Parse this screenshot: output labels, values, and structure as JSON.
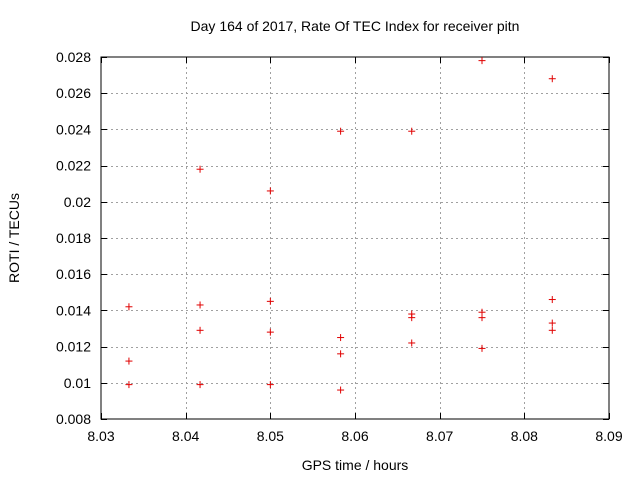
{
  "chart_data": {
    "type": "scatter",
    "title": "Day 164 of 2017, Rate Of TEC Index for receiver pitn",
    "xlabel": "GPS time / hours",
    "ylabel": "ROTI / TECUs",
    "xlim": [
      8.03,
      8.09
    ],
    "ylim": [
      0.008,
      0.028
    ],
    "xticks": [
      8.03,
      8.04,
      8.05,
      8.06,
      8.07,
      8.08,
      8.09
    ],
    "xtick_labels": [
      "8.03",
      "8.04",
      "8.05",
      "8.06",
      "8.07",
      "8.08",
      "8.09"
    ],
    "yticks": [
      0.008,
      0.01,
      0.012,
      0.014,
      0.016,
      0.018,
      0.02,
      0.022,
      0.024,
      0.026,
      0.028
    ],
    "ytick_labels": [
      "0.008",
      "0.01",
      "0.012",
      "0.014",
      "0.016",
      "0.018",
      "0.02",
      "0.022",
      "0.024",
      "0.026",
      "0.028"
    ],
    "grid": true,
    "marker": "+",
    "color": "#e00000",
    "series": [
      {
        "name": "ROTI",
        "points": [
          {
            "x": 8.0333,
            "y": 0.0142
          },
          {
            "x": 8.0333,
            "y": 0.0112
          },
          {
            "x": 8.0333,
            "y": 0.0099
          },
          {
            "x": 8.0417,
            "y": 0.0218
          },
          {
            "x": 8.0417,
            "y": 0.0143
          },
          {
            "x": 8.0417,
            "y": 0.0129
          },
          {
            "x": 8.0417,
            "y": 0.0099
          },
          {
            "x": 8.05,
            "y": 0.0206
          },
          {
            "x": 8.05,
            "y": 0.0145
          },
          {
            "x": 8.05,
            "y": 0.0128
          },
          {
            "x": 8.05,
            "y": 0.0099
          },
          {
            "x": 8.0583,
            "y": 0.0239
          },
          {
            "x": 8.0583,
            "y": 0.0125
          },
          {
            "x": 8.0583,
            "y": 0.0116
          },
          {
            "x": 8.0583,
            "y": 0.0096
          },
          {
            "x": 8.0667,
            "y": 0.0239
          },
          {
            "x": 8.0667,
            "y": 0.0138
          },
          {
            "x": 8.0667,
            "y": 0.0136
          },
          {
            "x": 8.0667,
            "y": 0.0122
          },
          {
            "x": 8.075,
            "y": 0.0278
          },
          {
            "x": 8.075,
            "y": 0.0139
          },
          {
            "x": 8.075,
            "y": 0.0136
          },
          {
            "x": 8.075,
            "y": 0.0119
          },
          {
            "x": 8.0833,
            "y": 0.0268
          },
          {
            "x": 8.0833,
            "y": 0.0146
          },
          {
            "x": 8.0833,
            "y": 0.0133
          },
          {
            "x": 8.0833,
            "y": 0.0129
          }
        ]
      }
    ]
  }
}
